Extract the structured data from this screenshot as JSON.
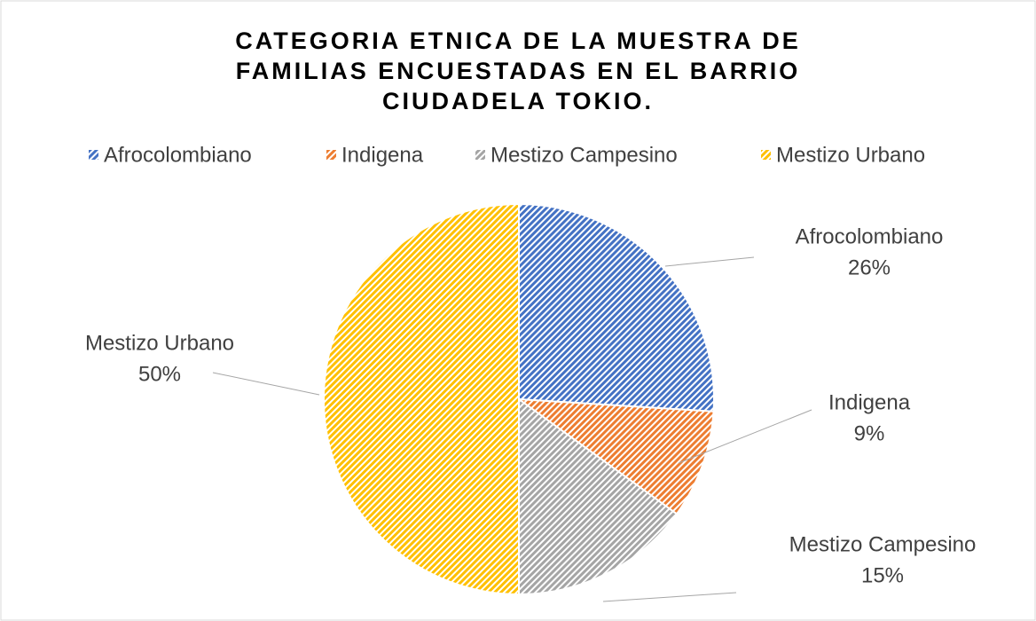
{
  "chart_data": {
    "type": "pie",
    "title": [
      "CATEGORIA ETNICA DE LA MUESTRA DE",
      "FAMILIAS ENCUESTADAS EN EL  BARRIO",
      "CIUDADELA TOKIO."
    ],
    "categories": [
      "Afrocolombiano",
      "Indigena",
      "Mestizo Campesino",
      "Mestizo Urbano"
    ],
    "values": [
      26,
      9,
      15,
      50
    ],
    "value_labels": [
      "26%",
      "9%",
      "15%",
      "50%"
    ],
    "colors": [
      "#4472c4",
      "#ed7d31",
      "#a5a5a5",
      "#ffc000"
    ],
    "legend": "top"
  }
}
